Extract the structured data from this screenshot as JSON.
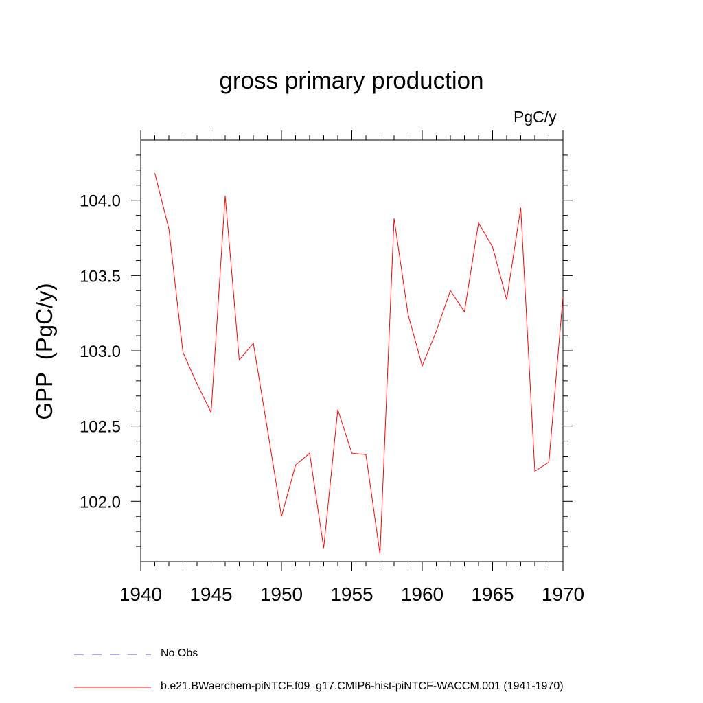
{
  "chart_data": {
    "type": "line",
    "title": "gross primary production",
    "units_label": "PgC/y",
    "xlabel": "",
    "ylabel": "GPP  (PgC/y)",
    "xlim": [
      1940,
      1970
    ],
    "ylim": [
      101.6,
      104.4
    ],
    "x_ticks": [
      1940,
      1945,
      1950,
      1955,
      1960,
      1965,
      1970
    ],
    "x_tick_labels": [
      "1940",
      "1945",
      "1950",
      "1955",
      "1960",
      "1965",
      "1970"
    ],
    "y_ticks": [
      102.0,
      102.5,
      103.0,
      103.5,
      104.0
    ],
    "y_tick_labels": [
      "102.0",
      "102.5",
      "103.0",
      "103.5",
      "104.0"
    ],
    "grid": false,
    "legend_position": "bottom-left",
    "series": [
      {
        "name": "b.e21.BWaerchem-piNTCF.f09_g17.CMIP6-hist-piNTCF-WACCM.001 (1941-1970)",
        "color": "#ff0000",
        "style": "solid",
        "x": [
          1941,
          1942,
          1943,
          1944,
          1945,
          1946,
          1947,
          1948,
          1949,
          1950,
          1951,
          1952,
          1953,
          1954,
          1955,
          1956,
          1957,
          1958,
          1959,
          1960,
          1961,
          1962,
          1963,
          1964,
          1965,
          1966,
          1967,
          1968,
          1969,
          1970
        ],
        "y": [
          104.18,
          103.81,
          102.99,
          102.78,
          102.59,
          104.03,
          102.94,
          103.05,
          102.48,
          101.9,
          102.24,
          102.32,
          101.69,
          102.61,
          102.32,
          102.31,
          101.65,
          103.88,
          103.24,
          102.9,
          103.13,
          103.4,
          103.26,
          103.85,
          103.69,
          103.34,
          103.95,
          102.2,
          102.26,
          103.36
        ]
      }
    ],
    "legend": [
      {
        "label": "No Obs",
        "color": "#5a4fcf",
        "style": "dashed"
      },
      {
        "label": "b.e21.BWaerchem-piNTCF.f09_g17.CMIP6-hist-piNTCF-WACCM.001 (1941-1970)",
        "color": "#ff0000",
        "style": "solid"
      }
    ]
  }
}
